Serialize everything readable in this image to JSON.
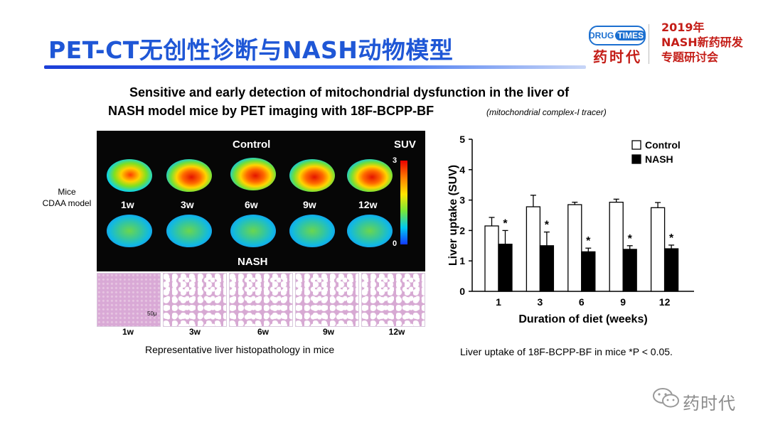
{
  "header": {
    "title": "PET-CT无创性诊断与NASH动物模型",
    "logo": {
      "en_left": "DRUG",
      "en_right": "TIMES",
      "cn": "药时代"
    },
    "event": {
      "line1": "2019年",
      "line2": "NASH新药研发",
      "line3": "专题研讨会"
    }
  },
  "subtitle": {
    "line1": "Sensitive and early detection of mitochondrial dysfunction in the liver of",
    "line2": "NASH model mice by PET imaging with 18F-BCPP-BF",
    "tracer_note": "(mitochondrial complex-I tracer)"
  },
  "mice_label": {
    "line1": "Mice",
    "line2": "CDAA model"
  },
  "pet_panel": {
    "control_label": "Control",
    "nash_label": "NASH",
    "suv_label": "SUV",
    "suv_max": "3",
    "suv_min": "0",
    "timepoints": [
      "1w",
      "3w",
      "6w",
      "9w",
      "12w"
    ]
  },
  "histology": {
    "labels": [
      "1w",
      "3w",
      "6w",
      "9w",
      "12w"
    ],
    "scale_bar": "50μ",
    "caption": "Representative liver histopathology in mice"
  },
  "chart_caption": "Liver uptake of 18F-BCPP-BF in mice *P < 0.05.",
  "chart_data": {
    "type": "bar",
    "categories": [
      "1",
      "3",
      "6",
      "9",
      "12"
    ],
    "series": [
      {
        "name": "Control",
        "color": "#ffffff",
        "values": [
          2.15,
          2.78,
          2.85,
          2.93,
          2.75
        ],
        "errors": [
          0.28,
          0.38,
          0.08,
          0.1,
          0.17
        ]
      },
      {
        "name": "NASH",
        "color": "#000000",
        "values": [
          1.55,
          1.5,
          1.3,
          1.38,
          1.4
        ],
        "errors": [
          0.45,
          0.45,
          0.12,
          0.12,
          0.12
        ]
      }
    ],
    "significance": [
      "*",
      "*",
      "*",
      "*",
      "*"
    ],
    "xlabel": "Duration of diet (weeks)",
    "ylabel": "Liver uptake (SUV)",
    "ylim": [
      0,
      5
    ],
    "yticks": [
      "0",
      "1",
      "2",
      "3",
      "4",
      "5"
    ],
    "legend_position": "top-right",
    "grid": false
  },
  "watermark": {
    "text": "药时代",
    "icon": "wechat-icon"
  }
}
